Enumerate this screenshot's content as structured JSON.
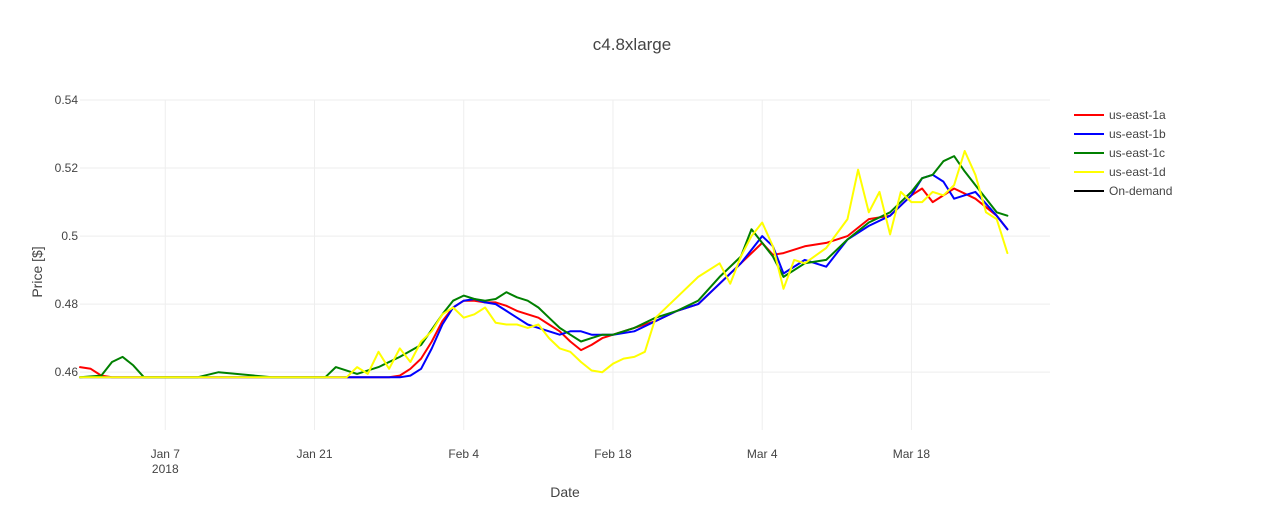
{
  "chart_data": {
    "type": "line",
    "title": "c4.8xlarge",
    "xlabel": "Date",
    "ylabel": "Price [$]",
    "x_range": [
      "2017-12-30",
      "2018-03-31"
    ],
    "ylim": [
      0.443,
      0.54
    ],
    "yticks": [
      {
        "value": 0.46,
        "label": "0.46"
      },
      {
        "value": 0.48,
        "label": "0.48"
      },
      {
        "value": 0.5,
        "label": "0.5"
      },
      {
        "value": 0.52,
        "label": "0.52"
      },
      {
        "value": 0.54,
        "label": "0.54"
      }
    ],
    "xticks": [
      {
        "date": "2018-01-07",
        "label": "Jan 7",
        "sublabel": "2018"
      },
      {
        "date": "2018-01-21",
        "label": "Jan 21",
        "sublabel": ""
      },
      {
        "date": "2018-02-04",
        "label": "Feb 4",
        "sublabel": ""
      },
      {
        "date": "2018-02-18",
        "label": "Feb 18",
        "sublabel": ""
      },
      {
        "date": "2018-03-04",
        "label": "Mar 4",
        "sublabel": ""
      },
      {
        "date": "2018-03-18",
        "label": "Mar 18",
        "sublabel": ""
      }
    ],
    "grid": true,
    "legend_position": "top-right",
    "series": [
      {
        "name": "us-east-1a",
        "color": "#ff0000",
        "x": [
          "2017-12-30",
          "2017-12-31",
          "2018-01-01",
          "2018-01-02",
          "2018-01-03",
          "2018-01-10",
          "2018-01-17",
          "2018-01-24",
          "2018-01-28",
          "2018-01-29",
          "2018-01-30",
          "2018-01-31",
          "2018-02-01",
          "2018-02-02",
          "2018-02-03",
          "2018-02-04",
          "2018-02-05",
          "2018-02-06",
          "2018-02-07",
          "2018-02-08",
          "2018-02-09",
          "2018-02-10",
          "2018-02-11",
          "2018-02-12",
          "2018-02-13",
          "2018-02-14",
          "2018-02-15",
          "2018-02-16",
          "2018-02-17",
          "2018-02-18",
          "2018-02-20",
          "2018-02-22",
          "2018-02-24",
          "2018-02-26",
          "2018-02-28",
          "2018-03-02",
          "2018-03-04",
          "2018-03-05",
          "2018-03-06",
          "2018-03-08",
          "2018-03-10",
          "2018-03-12",
          "2018-03-14",
          "2018-03-16",
          "2018-03-18",
          "2018-03-19",
          "2018-03-20",
          "2018-03-22",
          "2018-03-24",
          "2018-03-26",
          "2018-03-27"
        ],
        "y": [
          0.4615,
          0.461,
          0.459,
          0.4585,
          0.4585,
          0.4585,
          0.4585,
          0.4585,
          0.4585,
          0.459,
          0.461,
          0.464,
          0.469,
          0.475,
          0.479,
          0.481,
          0.481,
          0.4805,
          0.4805,
          0.4795,
          0.478,
          0.477,
          0.476,
          0.474,
          0.472,
          0.469,
          0.4665,
          0.468,
          0.47,
          0.471,
          0.473,
          0.475,
          0.478,
          0.48,
          0.486,
          0.492,
          0.498,
          0.4945,
          0.495,
          0.497,
          0.498,
          0.5,
          0.505,
          0.506,
          0.512,
          0.514,
          0.51,
          0.514,
          0.511,
          0.506,
          0.502
        ]
      },
      {
        "name": "us-east-1b",
        "color": "#0000ff",
        "x": [
          "2017-12-30",
          "2018-01-03",
          "2018-01-10",
          "2018-01-17",
          "2018-01-24",
          "2018-01-28",
          "2018-01-29",
          "2018-01-30",
          "2018-01-31",
          "2018-02-01",
          "2018-02-02",
          "2018-02-03",
          "2018-02-04",
          "2018-02-05",
          "2018-02-06",
          "2018-02-07",
          "2018-02-08",
          "2018-02-09",
          "2018-02-10",
          "2018-02-11",
          "2018-02-12",
          "2018-02-13",
          "2018-02-14",
          "2018-02-15",
          "2018-02-16",
          "2018-02-17",
          "2018-02-18",
          "2018-02-20",
          "2018-02-22",
          "2018-02-24",
          "2018-02-26",
          "2018-02-28",
          "2018-03-02",
          "2018-03-04",
          "2018-03-05",
          "2018-03-06",
          "2018-03-08",
          "2018-03-10",
          "2018-03-12",
          "2018-03-14",
          "2018-03-16",
          "2018-03-18",
          "2018-03-19",
          "2018-03-20",
          "2018-03-21",
          "2018-03-22",
          "2018-03-24",
          "2018-03-26",
          "2018-03-27"
        ],
        "y": [
          0.4585,
          0.4585,
          0.4585,
          0.4585,
          0.4585,
          0.4585,
          0.4585,
          0.459,
          0.461,
          0.467,
          0.474,
          0.479,
          0.481,
          0.4815,
          0.4805,
          0.48,
          0.478,
          0.476,
          0.474,
          0.473,
          0.472,
          0.471,
          0.472,
          0.472,
          0.471,
          0.471,
          0.471,
          0.472,
          0.475,
          0.478,
          0.48,
          0.486,
          0.492,
          0.5,
          0.497,
          0.489,
          0.493,
          0.491,
          0.499,
          0.503,
          0.506,
          0.512,
          0.517,
          0.518,
          0.516,
          0.511,
          0.513,
          0.506,
          0.502
        ]
      },
      {
        "name": "us-east-1c",
        "color": "#008000",
        "x": [
          "2017-12-30",
          "2018-01-01",
          "2018-01-02",
          "2018-01-03",
          "2018-01-04",
          "2018-01-05",
          "2018-01-06",
          "2018-01-10",
          "2018-01-12",
          "2018-01-17",
          "2018-01-20",
          "2018-01-22",
          "2018-01-23",
          "2018-01-25",
          "2018-01-27",
          "2018-01-29",
          "2018-01-31",
          "2018-02-02",
          "2018-02-03",
          "2018-02-04",
          "2018-02-05",
          "2018-02-06",
          "2018-02-07",
          "2018-02-08",
          "2018-02-09",
          "2018-02-10",
          "2018-02-11",
          "2018-02-12",
          "2018-02-13",
          "2018-02-14",
          "2018-02-15",
          "2018-02-16",
          "2018-02-17",
          "2018-02-18",
          "2018-02-20",
          "2018-02-22",
          "2018-02-24",
          "2018-02-26",
          "2018-02-28",
          "2018-03-02",
          "2018-03-03",
          "2018-03-04",
          "2018-03-05",
          "2018-03-06",
          "2018-03-08",
          "2018-03-10",
          "2018-03-12",
          "2018-03-14",
          "2018-03-16",
          "2018-03-18",
          "2018-03-19",
          "2018-03-20",
          "2018-03-21",
          "2018-03-22",
          "2018-03-23",
          "2018-03-24",
          "2018-03-26",
          "2018-03-27"
        ],
        "y": [
          0.4585,
          0.459,
          0.463,
          0.4645,
          0.462,
          0.4585,
          0.4585,
          0.4585,
          0.46,
          0.4585,
          0.4585,
          0.4585,
          0.4615,
          0.4595,
          0.4615,
          0.4645,
          0.468,
          0.477,
          0.481,
          0.4825,
          0.4815,
          0.481,
          0.4815,
          0.4835,
          0.482,
          0.481,
          0.479,
          0.476,
          0.473,
          0.471,
          0.469,
          0.47,
          0.471,
          0.471,
          0.473,
          0.476,
          0.478,
          0.481,
          0.488,
          0.494,
          0.502,
          0.498,
          0.494,
          0.488,
          0.492,
          0.493,
          0.499,
          0.504,
          0.507,
          0.513,
          0.517,
          0.518,
          0.522,
          0.5235,
          0.519,
          0.515,
          0.507,
          0.506
        ]
      },
      {
        "name": "us-east-1d",
        "color": "#ffff00",
        "x": [
          "2017-12-30",
          "2018-01-03",
          "2018-01-10",
          "2018-01-17",
          "2018-01-24",
          "2018-01-25",
          "2018-01-26",
          "2018-01-27",
          "2018-01-28",
          "2018-01-29",
          "2018-01-30",
          "2018-01-31",
          "2018-02-01",
          "2018-02-02",
          "2018-02-03",
          "2018-02-04",
          "2018-02-05",
          "2018-02-06",
          "2018-02-07",
          "2018-02-08",
          "2018-02-09",
          "2018-02-10",
          "2018-02-11",
          "2018-02-12",
          "2018-02-13",
          "2018-02-14",
          "2018-02-15",
          "2018-02-16",
          "2018-02-17",
          "2018-02-18",
          "2018-02-19",
          "2018-02-20",
          "2018-02-21",
          "2018-02-22",
          "2018-02-24",
          "2018-02-26",
          "2018-02-28",
          "2018-03-01",
          "2018-03-02",
          "2018-03-03",
          "2018-03-04",
          "2018-03-05",
          "2018-03-06",
          "2018-03-07",
          "2018-03-08",
          "2018-03-10",
          "2018-03-12",
          "2018-03-13",
          "2018-03-14",
          "2018-03-15",
          "2018-03-16",
          "2018-03-17",
          "2018-03-18",
          "2018-03-19",
          "2018-03-20",
          "2018-03-21",
          "2018-03-22",
          "2018-03-23",
          "2018-03-24",
          "2018-03-25",
          "2018-03-26",
          "2018-03-27"
        ],
        "y": [
          0.4585,
          0.4585,
          0.4585,
          0.4585,
          0.4585,
          0.4615,
          0.4595,
          0.466,
          0.461,
          0.467,
          0.463,
          0.469,
          0.472,
          0.477,
          0.479,
          0.476,
          0.477,
          0.479,
          0.4745,
          0.474,
          0.474,
          0.473,
          0.474,
          0.47,
          0.467,
          0.466,
          0.463,
          0.4605,
          0.46,
          0.4625,
          0.464,
          0.4645,
          0.466,
          0.476,
          0.482,
          0.488,
          0.492,
          0.486,
          0.494,
          0.5,
          0.504,
          0.497,
          0.4845,
          0.493,
          0.492,
          0.4965,
          0.505,
          0.5195,
          0.507,
          0.513,
          0.5005,
          0.513,
          0.51,
          0.51,
          0.513,
          0.512,
          0.515,
          0.525,
          0.518,
          0.507,
          0.505,
          0.495
        ]
      },
      {
        "name": "On-demand",
        "color": "#000000",
        "x": [],
        "y": []
      }
    ]
  }
}
